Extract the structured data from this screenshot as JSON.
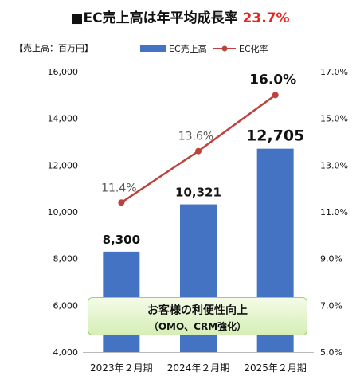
{
  "title": {
    "prefix": "■EC売上高は年平均成長率",
    "rate": "23.7%"
  },
  "unit_label": "【売上高：百万円】",
  "banner": {
    "line1": "お客様の利便性向上",
    "line2": "（OMO、CRM強化）"
  },
  "colors": {
    "bar": "#4573c4",
    "line": "#c0413b",
    "rate": "#e8251f",
    "banner_border": "#9bd06a"
  },
  "chart_data": {
    "type": "bar",
    "categories": [
      "2023年２月期",
      "2024年２月期",
      "2025年２月期"
    ],
    "series": [
      {
        "name": "EC売上高",
        "type": "bar",
        "axis": "left",
        "values": [
          8300,
          10321,
          12705
        ],
        "labels": [
          "8,300",
          "10,321",
          "12,705"
        ]
      },
      {
        "name": "EC化率",
        "type": "line",
        "axis": "right",
        "values": [
          11.4,
          13.6,
          16.0
        ],
        "labels": [
          "11.4%",
          "13.6%",
          "16.0%"
        ]
      }
    ],
    "ylim_left": [
      4000,
      16000
    ],
    "yticks_left": [
      "4,000",
      "6,000",
      "8,000",
      "10,000",
      "12,000",
      "14,000",
      "16,000"
    ],
    "ylim_right": [
      5.0,
      17.0
    ],
    "yticks_right": [
      "5.0%",
      "7.0%",
      "9.0%",
      "11.0%",
      "13.0%",
      "15.0%",
      "17.0%"
    ],
    "legend": "top-right",
    "grid": false
  }
}
